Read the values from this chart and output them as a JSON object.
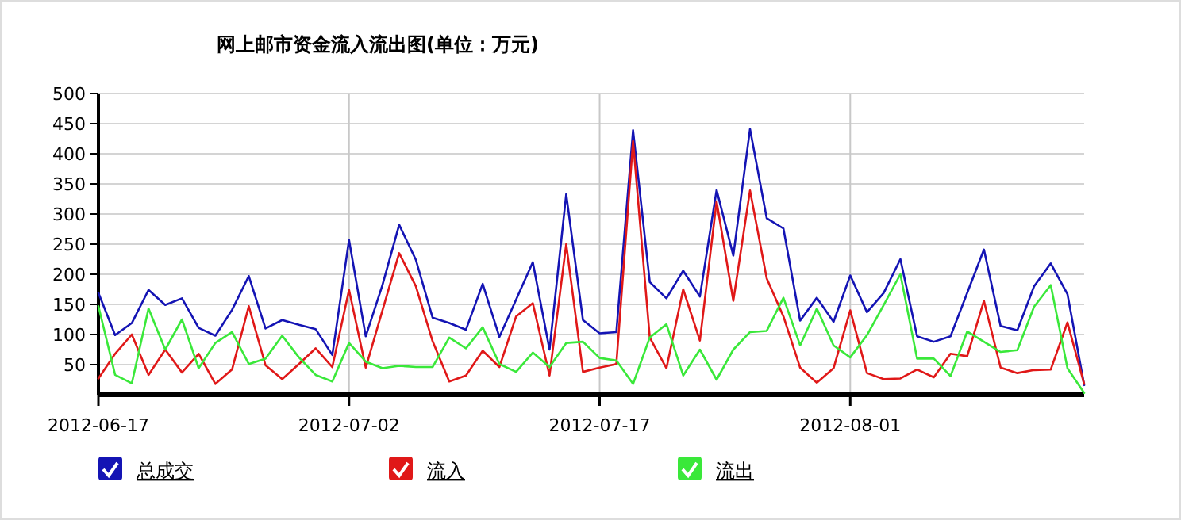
{
  "chart_data": {
    "type": "line",
    "title": "网上邮市资金流入流出图(单位：万元)",
    "x": [
      "2012-06-17",
      "2012-06-18",
      "2012-06-19",
      "2012-06-20",
      "2012-06-21",
      "2012-06-22",
      "2012-06-23",
      "2012-06-24",
      "2012-06-25",
      "2012-06-26",
      "2012-06-27",
      "2012-06-28",
      "2012-06-29",
      "2012-06-30",
      "2012-07-01",
      "2012-07-02",
      "2012-07-03",
      "2012-07-04",
      "2012-07-05",
      "2012-07-06",
      "2012-07-07",
      "2012-07-08",
      "2012-07-09",
      "2012-07-10",
      "2012-07-11",
      "2012-07-12",
      "2012-07-13",
      "2012-07-14",
      "2012-07-15",
      "2012-07-16",
      "2012-07-17",
      "2012-07-18",
      "2012-07-19",
      "2012-07-20",
      "2012-07-21",
      "2012-07-22",
      "2012-07-23",
      "2012-07-24",
      "2012-07-25",
      "2012-07-26",
      "2012-07-27",
      "2012-07-28",
      "2012-07-29",
      "2012-07-30",
      "2012-07-31",
      "2012-08-01",
      "2012-08-02",
      "2012-08-03",
      "2012-08-04",
      "2012-08-05",
      "2012-08-06",
      "2012-08-07",
      "2012-08-08",
      "2012-08-09",
      "2012-08-10",
      "2012-08-11",
      "2012-08-12",
      "2012-08-13",
      "2012-08-14",
      "2012-08-15"
    ],
    "series": [
      {
        "name": "总成交",
        "color": "#1414b4",
        "values": [
          169,
          99,
          119,
          174,
          149,
          160,
          111,
          98,
          141,
          197,
          110,
          124,
          116,
          109,
          66,
          257,
          97,
          182,
          282,
          224,
          128,
          119,
          108,
          184,
          96,
          158,
          220,
          75,
          333,
          124,
          102,
          104,
          439,
          187,
          160,
          206,
          163,
          340,
          231,
          441,
          293,
          276,
          123,
          161,
          121,
          198,
          137,
          169,
          225,
          97,
          88,
          97,
          169,
          241,
          114,
          107,
          180,
          218,
          167,
          16
        ]
      },
      {
        "name": "流入",
        "color": "#e01818",
        "values": [
          27,
          68,
          100,
          33,
          75,
          37,
          68,
          18,
          42,
          147,
          49,
          26,
          51,
          77,
          46,
          174,
          45,
          140,
          235,
          180,
          89,
          22,
          32,
          73,
          46,
          130,
          152,
          32,
          250,
          38,
          45,
          51,
          421,
          95,
          44,
          175,
          90,
          321,
          156,
          339,
          193,
          130,
          45,
          20,
          44,
          140,
          36,
          26,
          27,
          42,
          29,
          68,
          64,
          156,
          45,
          36,
          41,
          42,
          120,
          18
        ]
      },
      {
        "name": "流出",
        "color": "#3ae83a",
        "values": [
          147,
          33,
          19,
          143,
          75,
          125,
          44,
          86,
          104,
          51,
          60,
          98,
          62,
          33,
          22,
          86,
          55,
          44,
          48,
          46,
          46,
          95,
          77,
          112,
          51,
          38,
          70,
          46,
          86,
          88,
          61,
          57,
          18,
          95,
          117,
          32,
          75,
          25,
          75,
          104,
          106,
          161,
          82,
          143,
          82,
          62,
          99,
          149,
          200,
          60,
          60,
          31,
          105,
          88,
          71,
          74,
          146,
          182,
          44,
          3
        ]
      }
    ],
    "xlim": [
      "2012-06-17",
      "2012-08-15"
    ],
    "xticks": [
      "2012-06-17",
      "2012-07-02",
      "2012-07-17",
      "2012-08-01"
    ],
    "ylim": [
      0,
      500
    ],
    "yticks": [
      50,
      100,
      150,
      200,
      250,
      300,
      350,
      400,
      450,
      500
    ],
    "grid": true,
    "legend": "bottom"
  }
}
